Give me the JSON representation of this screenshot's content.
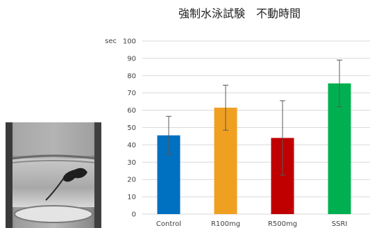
{
  "image": {
    "description": "photo of a mouse in a water-filled transparent cylinder"
  },
  "chart_data": {
    "type": "bar",
    "title": "強制水泳試験　不動時間",
    "ylabel": "sec",
    "xlabel": "",
    "ylim": [
      0,
      100
    ],
    "yticks": [
      0,
      10,
      20,
      30,
      40,
      50,
      60,
      70,
      80,
      90,
      100
    ],
    "grid": true,
    "categories": [
      "Control",
      "R100mg",
      "R500mg",
      "SSRI"
    ],
    "values": [
      45.5,
      61.5,
      44,
      75.5
    ],
    "errors": [
      11,
      13,
      21.5,
      13.5
    ],
    "colors": [
      "#0070C0",
      "#F0A020",
      "#C00000",
      "#00B050"
    ]
  },
  "colors": {
    "gridline": "#D9D9D9",
    "errorbar": "#595959"
  }
}
